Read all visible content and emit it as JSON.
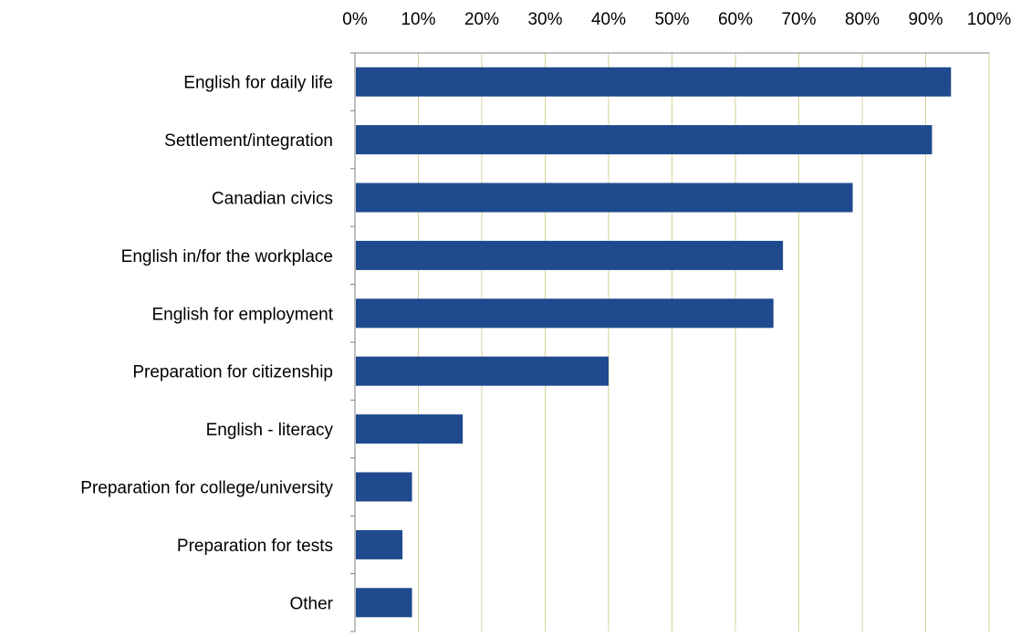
{
  "chart_data": {
    "type": "bar",
    "orientation": "horizontal",
    "categories": [
      "English for daily life",
      "Settlement/integration",
      "Canadian civics",
      "English in/for the workplace",
      "English for employment",
      "Preparation for citizenship",
      "English - literacy",
      "Preparation for college/university",
      "Preparation for tests",
      "Other"
    ],
    "values": [
      94,
      91,
      78.5,
      67.5,
      66,
      40,
      17,
      9,
      7.5,
      9
    ],
    "x_ticks": [
      "0%",
      "10%",
      "20%",
      "30%",
      "40%",
      "50%",
      "60%",
      "70%",
      "80%",
      "90%",
      "100%"
    ],
    "xlim": [
      0,
      100
    ],
    "x_axis_position": "top",
    "grid": true,
    "legend": "none",
    "title": "",
    "xlabel": "",
    "ylabel": "",
    "colors": {
      "bar": "#1F4A8E",
      "grid": "#D9D29A",
      "axis": "#808080"
    }
  }
}
